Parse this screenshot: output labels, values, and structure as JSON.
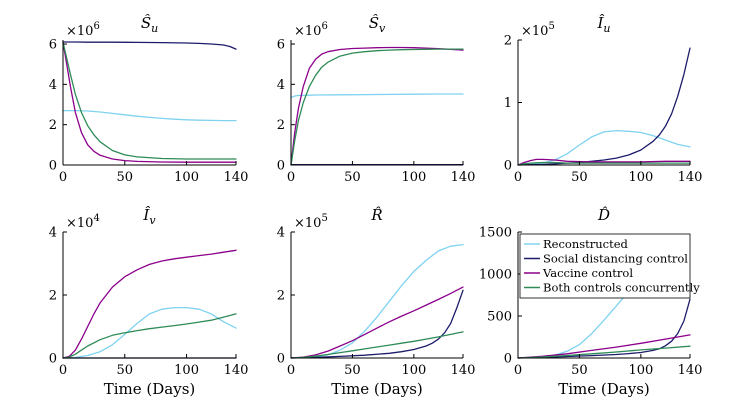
{
  "chart_data": {
    "type": "line",
    "xlabel": "Time (Days)",
    "legend": {
      "placement": "inside bottom-right panel, top-left",
      "entries": [
        {
          "name": "Reconstructed",
          "color": "#7fd2f0"
        },
        {
          "name": "Social distancing control",
          "color": "#1c1c6b"
        },
        {
          "name": "Vaccine control",
          "color": "#8b008b"
        },
        {
          "name": "Both controls concurrently",
          "color": "#2e8b57"
        }
      ]
    },
    "panels": [
      {
        "id": "su",
        "title": "Ŝ",
        "title_sub": "u",
        "multiplier_base": "×10",
        "multiplier_exp": "6",
        "xlim": [
          0,
          140
        ],
        "ylim": [
          0,
          6.2
        ],
        "xticks": [
          0,
          50,
          100,
          140
        ],
        "yticks": [
          0,
          2,
          4,
          6
        ],
        "series": [
          {
            "name": "Reconstructed",
            "x": [
              0,
              10,
              20,
              30,
              40,
              50,
              60,
              70,
              80,
              90,
              100,
              110,
              120,
              130,
              140
            ],
            "y": [
              2.7,
              2.7,
              2.68,
              2.63,
              2.56,
              2.49,
              2.42,
              2.36,
              2.31,
              2.27,
              2.24,
              2.22,
              2.21,
              2.2,
              2.2
            ]
          },
          {
            "name": "Social distancing control",
            "x": [
              0,
              10,
              20,
              40,
              60,
              80,
              100,
              110,
              120,
              130,
              135,
              140
            ],
            "y": [
              6.1,
              6.1,
              6.09,
              6.09,
              6.08,
              6.07,
              6.05,
              6.03,
              6.0,
              5.95,
              5.88,
              5.75
            ]
          },
          {
            "name": "Vaccine control",
            "x": [
              0,
              3,
              6,
              10,
              15,
              20,
              25,
              30,
              40,
              50,
              60,
              80,
              100,
              120,
              140
            ],
            "y": [
              6.1,
              5.0,
              3.9,
              2.6,
              1.6,
              1.0,
              0.68,
              0.48,
              0.3,
              0.22,
              0.18,
              0.15,
              0.14,
              0.14,
              0.14
            ]
          },
          {
            "name": "Both controls concurrently",
            "x": [
              0,
              3,
              6,
              10,
              15,
              20,
              25,
              30,
              40,
              50,
              60,
              80,
              100,
              120,
              140
            ],
            "y": [
              6.1,
              5.3,
              4.5,
              3.5,
              2.6,
              1.95,
              1.5,
              1.15,
              0.72,
              0.5,
              0.4,
              0.32,
              0.3,
              0.3,
              0.3
            ]
          }
        ]
      },
      {
        "id": "sv",
        "title": "Ŝ",
        "title_sub": "v",
        "multiplier_base": "×10",
        "multiplier_exp": "6",
        "xlim": [
          0,
          140
        ],
        "ylim": [
          0,
          6.2
        ],
        "xticks": [
          0,
          50,
          100,
          140
        ],
        "yticks": [
          0,
          2,
          4,
          6
        ],
        "series": [
          {
            "name": "Reconstructed",
            "x": [
              0,
              2,
              4,
              6,
              8,
              10,
              15,
              20,
              40,
              60,
              80,
              100,
              120,
              140
            ],
            "y": [
              3.35,
              3.4,
              3.43,
              3.45,
              3.45,
              3.45,
              3.46,
              3.47,
              3.48,
              3.49,
              3.5,
              3.51,
              3.52,
              3.52
            ]
          },
          {
            "name": "Social distancing control",
            "x": [
              0,
              20,
              40,
              60,
              80,
              100,
              120,
              140
            ],
            "y": [
              0.02,
              0.02,
              0.02,
              0.02,
              0.02,
              0.02,
              0.02,
              0.02
            ]
          },
          {
            "name": "Vaccine control",
            "x": [
              0,
              3,
              6,
              10,
              15,
              20,
              25,
              30,
              40,
              50,
              60,
              70,
              80,
              90,
              100,
              110,
              120,
              130,
              140
            ],
            "y": [
              0,
              1.6,
              2.8,
              3.9,
              4.8,
              5.25,
              5.5,
              5.62,
              5.73,
              5.78,
              5.8,
              5.82,
              5.83,
              5.83,
              5.82,
              5.8,
              5.77,
              5.74,
              5.7
            ]
          },
          {
            "name": "Both controls concurrently",
            "x": [
              0,
              3,
              6,
              10,
              15,
              20,
              25,
              30,
              40,
              50,
              60,
              70,
              80,
              90,
              100,
              110,
              120,
              130,
              140
            ],
            "y": [
              0,
              1.2,
              2.2,
              3.1,
              3.9,
              4.45,
              4.85,
              5.1,
              5.4,
              5.55,
              5.62,
              5.67,
              5.7,
              5.72,
              5.73,
              5.74,
              5.75,
              5.75,
              5.75
            ]
          }
        ]
      },
      {
        "id": "iu",
        "title": "Î",
        "title_sub": "u",
        "multiplier_base": "×10",
        "multiplier_exp": "5",
        "xlim": [
          0,
          140
        ],
        "ylim": [
          0,
          2
        ],
        "xticks": [
          0,
          50,
          100,
          140
        ],
        "yticks": [
          0,
          1,
          2
        ],
        "series": [
          {
            "name": "Reconstructed",
            "x": [
              0,
              10,
              20,
              30,
              40,
              50,
              60,
              70,
              80,
              90,
              100,
              110,
              120,
              130,
              140
            ],
            "y": [
              0,
              0.01,
              0.03,
              0.08,
              0.18,
              0.32,
              0.45,
              0.53,
              0.55,
              0.54,
              0.52,
              0.47,
              0.4,
              0.33,
              0.29
            ]
          },
          {
            "name": "Social distancing control",
            "x": [
              0,
              10,
              20,
              30,
              40,
              50,
              60,
              70,
              80,
              90,
              100,
              110,
              115,
              120,
              125,
              130,
              135,
              140
            ],
            "y": [
              0,
              0.005,
              0.01,
              0.02,
              0.03,
              0.04,
              0.06,
              0.08,
              0.11,
              0.16,
              0.24,
              0.38,
              0.48,
              0.62,
              0.82,
              1.1,
              1.45,
              1.87
            ]
          },
          {
            "name": "Vaccine control",
            "x": [
              0,
              5,
              10,
              15,
              20,
              30,
              40,
              60,
              80,
              100,
              120,
              140
            ],
            "y": [
              0,
              0.04,
              0.07,
              0.09,
              0.09,
              0.08,
              0.06,
              0.05,
              0.05,
              0.05,
              0.06,
              0.06
            ]
          },
          {
            "name": "Both controls concurrently",
            "x": [
              0,
              5,
              10,
              20,
              30,
              40,
              60,
              80,
              100,
              120,
              140
            ],
            "y": [
              0,
              0.02,
              0.03,
              0.04,
              0.04,
              0.03,
              0.03,
              0.03,
              0.03,
              0.03,
              0.03
            ]
          }
        ]
      },
      {
        "id": "iv",
        "title": "Î",
        "title_sub": "v",
        "multiplier_base": "×10",
        "multiplier_exp": "4",
        "xlim": [
          0,
          140
        ],
        "ylim": [
          0,
          4
        ],
        "xticks": [
          0,
          50,
          100,
          140
        ],
        "yticks": [
          0,
          2,
          4
        ],
        "series": [
          {
            "name": "Reconstructed",
            "x": [
              0,
              10,
              20,
              30,
              40,
              50,
              60,
              70,
              80,
              90,
              100,
              110,
              120,
              130,
              140
            ],
            "y": [
              0,
              0.02,
              0.08,
              0.2,
              0.42,
              0.75,
              1.1,
              1.4,
              1.55,
              1.6,
              1.6,
              1.55,
              1.4,
              1.15,
              0.95
            ]
          },
          {
            "name": "Social distancing control",
            "x": [
              0,
              40,
              80,
              120,
              140
            ],
            "y": [
              0,
              0,
              0,
              0,
              0
            ]
          },
          {
            "name": "Vaccine control",
            "x": [
              0,
              5,
              10,
              15,
              20,
              25,
              30,
              40,
              50,
              60,
              70,
              80,
              90,
              100,
              110,
              120,
              130,
              140
            ],
            "y": [
              0,
              0.05,
              0.25,
              0.6,
              1.0,
              1.4,
              1.75,
              2.25,
              2.58,
              2.8,
              2.97,
              3.08,
              3.15,
              3.2,
              3.25,
              3.3,
              3.36,
              3.42
            ]
          },
          {
            "name": "Both controls concurrently",
            "x": [
              0,
              5,
              10,
              15,
              20,
              30,
              40,
              50,
              60,
              70,
              80,
              90,
              100,
              110,
              120,
              130,
              140
            ],
            "y": [
              0,
              0.03,
              0.12,
              0.25,
              0.38,
              0.58,
              0.72,
              0.8,
              0.87,
              0.93,
              0.98,
              1.03,
              1.08,
              1.14,
              1.2,
              1.3,
              1.4
            ]
          }
        ]
      },
      {
        "id": "r",
        "title": "R̂",
        "title_sub": "",
        "multiplier_base": "×10",
        "multiplier_exp": "5",
        "xlim": [
          0,
          140
        ],
        "ylim": [
          0,
          4
        ],
        "xticks": [
          0,
          50,
          100,
          140
        ],
        "yticks": [
          0,
          2,
          4
        ],
        "series": [
          {
            "name": "Reconstructed",
            "x": [
              0,
              10,
              20,
              30,
              40,
              50,
              60,
              70,
              80,
              90,
              100,
              110,
              120,
              130,
              140
            ],
            "y": [
              0,
              0.01,
              0.04,
              0.1,
              0.25,
              0.48,
              0.85,
              1.3,
              1.8,
              2.3,
              2.75,
              3.1,
              3.4,
              3.55,
              3.6
            ]
          },
          {
            "name": "Social distancing control",
            "x": [
              0,
              20,
              40,
              60,
              80,
              90,
              100,
              110,
              115,
              120,
              125,
              130,
              135,
              140
            ],
            "y": [
              0,
              0.02,
              0.05,
              0.09,
              0.15,
              0.2,
              0.27,
              0.38,
              0.47,
              0.6,
              0.8,
              1.1,
              1.6,
              2.15
            ]
          },
          {
            "name": "Vaccine control",
            "x": [
              0,
              10,
              20,
              30,
              40,
              50,
              60,
              70,
              80,
              90,
              100,
              110,
              120,
              130,
              140
            ],
            "y": [
              0,
              0.03,
              0.1,
              0.22,
              0.38,
              0.55,
              0.75,
              0.95,
              1.15,
              1.33,
              1.5,
              1.68,
              1.86,
              2.05,
              2.25
            ]
          },
          {
            "name": "Both controls concurrently",
            "x": [
              0,
              10,
              20,
              30,
              40,
              50,
              60,
              70,
              80,
              90,
              100,
              110,
              120,
              130,
              140
            ],
            "y": [
              0,
              0.02,
              0.06,
              0.11,
              0.17,
              0.23,
              0.29,
              0.35,
              0.41,
              0.47,
              0.53,
              0.6,
              0.67,
              0.75,
              0.83
            ]
          }
        ]
      },
      {
        "id": "d",
        "title": "D̂",
        "title_sub": "",
        "multiplier_base": "",
        "multiplier_exp": "",
        "xlim": [
          0,
          140
        ],
        "ylim": [
          0,
          1500
        ],
        "xticks": [
          0,
          50,
          100,
          140
        ],
        "yticks": [
          0,
          500,
          1000,
          1500
        ],
        "series": [
          {
            "name": "Reconstructed",
            "x": [
              0,
              10,
              20,
              30,
              40,
              50,
              60,
              70,
              80,
              90,
              100,
              110,
              120,
              130,
              140
            ],
            "y": [
              0,
              5,
              15,
              35,
              80,
              160,
              290,
              450,
              620,
              790,
              950,
              1100,
              1220,
              1300,
              1340
            ]
          },
          {
            "name": "Social distancing control",
            "x": [
              0,
              20,
              40,
              60,
              80,
              90,
              100,
              110,
              115,
              120,
              125,
              130,
              135,
              140
            ],
            "y": [
              0,
              8,
              18,
              28,
              42,
              52,
              66,
              90,
              110,
              145,
              200,
              290,
              440,
              700
            ]
          },
          {
            "name": "Vaccine control",
            "x": [
              0,
              20,
              40,
              60,
              80,
              100,
              120,
              140
            ],
            "y": [
              0,
              20,
              50,
              90,
              130,
              175,
              225,
              275
            ]
          },
          {
            "name": "Both controls concurrently",
            "x": [
              0,
              20,
              40,
              60,
              80,
              100,
              120,
              140
            ],
            "y": [
              0,
              12,
              30,
              50,
              72,
              96,
              118,
              140
            ]
          }
        ]
      }
    ]
  }
}
